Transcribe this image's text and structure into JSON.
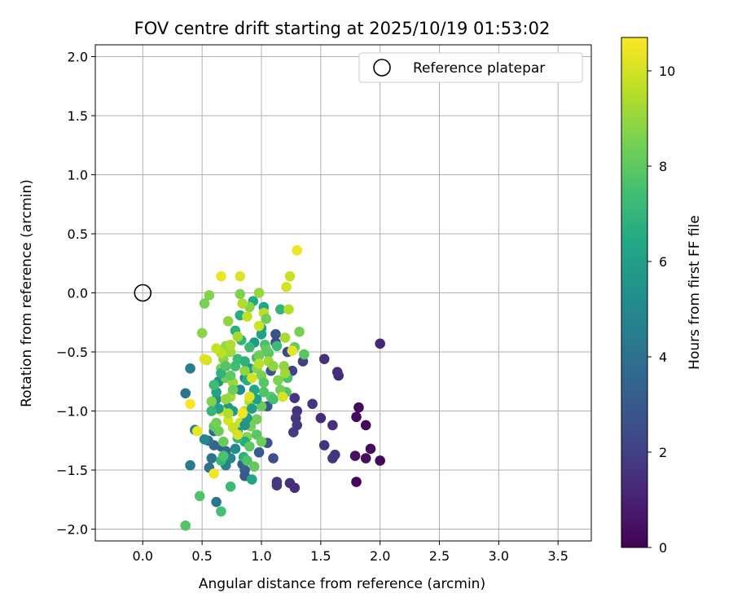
{
  "chart_data": {
    "type": "scatter",
    "title": "FOV centre drift starting at 2025/10/19 01:53:02",
    "xlabel": "Angular distance from reference (arcmin)",
    "ylabel": "Rotation from reference (arcmin)",
    "xlim": [
      -0.4,
      3.78
    ],
    "ylim": [
      -2.1,
      2.1
    ],
    "xticks": [
      "0.0",
      "0.5",
      "1.0",
      "1.5",
      "2.0",
      "2.5",
      "3.0",
      "3.5"
    ],
    "xtick_values": [
      0,
      0.5,
      1.0,
      1.5,
      2.0,
      2.5,
      3.0,
      3.5
    ],
    "yticks": [
      "2.0",
      "1.5",
      "1.0",
      "0.5",
      "0.0",
      "−0.5",
      "−1.0",
      "−1.5",
      "−2.0"
    ],
    "ytick_values": [
      2.0,
      1.5,
      1.0,
      0.5,
      0.0,
      -0.5,
      -1.0,
      -1.5,
      -2.0
    ],
    "grid": true,
    "legend": {
      "position": "top-right",
      "label": "Reference platepar",
      "marker": "open-circle"
    },
    "reference": {
      "x": 0.0,
      "y": 0.0
    },
    "colorbar": {
      "label": "Hours from first FF file",
      "range": [
        0,
        10.7
      ],
      "ticks": [
        "0",
        "2",
        "4",
        "6",
        "8",
        "10"
      ],
      "tick_values": [
        0,
        2,
        4,
        6,
        8,
        10
      ],
      "colormap": "viridis"
    },
    "points": [
      [
        1.8,
        -1.6,
        0.1
      ],
      [
        2.0,
        -1.42,
        0.2
      ],
      [
        1.92,
        -1.32,
        0.3
      ],
      [
        1.88,
        -1.4,
        0.4
      ],
      [
        1.88,
        -1.12,
        0.3
      ],
      [
        1.8,
        -1.05,
        0.2
      ],
      [
        1.82,
        -0.97,
        0.3
      ],
      [
        1.79,
        -1.38,
        0.5
      ],
      [
        2.0,
        -0.43,
        1.2
      ],
      [
        1.65,
        -0.7,
        1.3
      ],
      [
        1.64,
        -0.67,
        1.4
      ],
      [
        1.53,
        -0.56,
        1.5
      ],
      [
        1.6,
        -1.12,
        1.4
      ],
      [
        1.5,
        -1.06,
        1.3
      ],
      [
        1.53,
        -1.29,
        1.5
      ],
      [
        1.6,
        -1.4,
        1.6
      ],
      [
        1.62,
        -1.37,
        1.7
      ],
      [
        1.43,
        -0.94,
        1.6
      ],
      [
        1.3,
        -1.0,
        1.5
      ],
      [
        1.29,
        -1.06,
        1.7
      ],
      [
        1.3,
        -1.12,
        1.8
      ],
      [
        1.28,
        -0.89,
        1.6
      ],
      [
        1.27,
        -1.18,
        1.9
      ],
      [
        1.24,
        -1.61,
        1.5
      ],
      [
        1.28,
        -1.65,
        1.4
      ],
      [
        1.13,
        -1.6,
        1.7
      ],
      [
        1.13,
        -1.63,
        1.8
      ],
      [
        1.35,
        -0.58,
        2.0
      ],
      [
        1.26,
        -0.66,
        2.1
      ],
      [
        1.22,
        -0.5,
        2.2
      ],
      [
        1.12,
        -0.35,
        2.6
      ],
      [
        1.12,
        -0.42,
        2.4
      ],
      [
        1.05,
        -1.27,
        2.8
      ],
      [
        1.1,
        -1.4,
        2.6
      ],
      [
        1.08,
        -0.66,
        2.9
      ],
      [
        1.05,
        -0.96,
        3.0
      ],
      [
        0.98,
        -1.35,
        3.1
      ],
      [
        0.86,
        -1.5,
        3.2
      ],
      [
        0.86,
        -1.55,
        3.0
      ],
      [
        0.84,
        -1.45,
        3.3
      ],
      [
        0.66,
        -1.3,
        3.4
      ],
      [
        0.6,
        -1.29,
        3.5
      ],
      [
        0.7,
        -1.34,
        3.6
      ],
      [
        0.6,
        -1.17,
        3.7
      ],
      [
        0.55,
        -1.25,
        3.9
      ],
      [
        0.56,
        -1.48,
        4.0
      ],
      [
        0.58,
        -1.4,
        4.1
      ],
      [
        0.62,
        -1.77,
        4.3
      ],
      [
        0.4,
        -1.46,
        4.4
      ],
      [
        0.36,
        -0.85,
        4.2
      ],
      [
        0.4,
        -0.64,
        4.6
      ],
      [
        0.44,
        -1.16,
        4.8
      ],
      [
        0.52,
        -1.24,
        5.0
      ],
      [
        0.62,
        -0.9,
        5.2
      ],
      [
        0.64,
        -0.75,
        5.4
      ],
      [
        0.72,
        -0.97,
        5.6
      ],
      [
        0.76,
        -1.0,
        5.8
      ],
      [
        0.82,
        -0.82,
        5.0
      ],
      [
        0.86,
        -0.72,
        5.2
      ],
      [
        0.9,
        -0.64,
        5.5
      ],
      [
        0.94,
        -0.42,
        5.8
      ],
      [
        1.0,
        -0.35,
        6.0
      ],
      [
        1.0,
        -0.3,
        6.2
      ],
      [
        1.02,
        -0.12,
        6.3
      ],
      [
        0.93,
        -0.07,
        6.4
      ],
      [
        0.82,
        -0.19,
        6.6
      ],
      [
        0.78,
        -0.32,
        6.8
      ],
      [
        0.83,
        -0.4,
        7.0
      ],
      [
        0.9,
        -0.46,
        7.2
      ],
      [
        0.96,
        -0.55,
        7.4
      ],
      [
        1.03,
        -0.44,
        7.6
      ],
      [
        1.06,
        -0.51,
        7.8
      ],
      [
        1.16,
        -0.14,
        7.0
      ],
      [
        1.13,
        -0.45,
        7.3
      ],
      [
        1.22,
        -0.72,
        7.6
      ],
      [
        1.21,
        -0.84,
        7.8
      ],
      [
        1.08,
        -0.88,
        8.0
      ],
      [
        1.0,
        -0.96,
        8.2
      ],
      [
        0.96,
        -1.07,
        8.4
      ],
      [
        0.91,
        -1.13,
        8.5
      ],
      [
        0.88,
        -1.22,
        8.7
      ],
      [
        0.86,
        -1.26,
        6.5
      ],
      [
        0.85,
        -1.39,
        6.8
      ],
      [
        0.8,
        -1.23,
        7.0
      ],
      [
        0.74,
        -1.64,
        7.2
      ],
      [
        0.66,
        -1.85,
        7.5
      ],
      [
        0.48,
        -1.72,
        7.7
      ],
      [
        0.36,
        -1.97,
        7.8
      ],
      [
        0.6,
        -1.13,
        8.0
      ],
      [
        0.64,
        -1.17,
        8.2
      ],
      [
        0.7,
        -0.72,
        8.4
      ],
      [
        0.66,
        -0.64,
        8.6
      ],
      [
        0.68,
        -0.56,
        8.8
      ],
      [
        0.7,
        -0.45,
        9.0
      ],
      [
        0.74,
        -0.5,
        9.2
      ],
      [
        0.74,
        -0.44,
        9.4
      ],
      [
        0.66,
        -0.51,
        9.6
      ],
      [
        0.62,
        -0.47,
        9.8
      ],
      [
        0.54,
        -0.57,
        10.0
      ],
      [
        0.52,
        -0.56,
        10.2
      ],
      [
        0.46,
        -1.17,
        10.4
      ],
      [
        0.4,
        -0.94,
        10.6
      ],
      [
        0.6,
        -1.53,
        10.5
      ],
      [
        0.66,
        -1.0,
        10.3
      ],
      [
        0.72,
        -1.08,
        10.1
      ],
      [
        0.82,
        -1.1,
        9.9
      ],
      [
        0.86,
        -1.0,
        9.7
      ],
      [
        0.9,
        -0.92,
        9.5
      ],
      [
        0.74,
        -0.88,
        9.3
      ],
      [
        0.76,
        -0.76,
        9.1
      ],
      [
        0.86,
        -0.66,
        8.9
      ],
      [
        0.96,
        -0.64,
        8.7
      ],
      [
        1.0,
        -0.7,
        8.5
      ],
      [
        0.98,
        -0.53,
        8.3
      ],
      [
        1.04,
        -0.48,
        8.1
      ],
      [
        1.02,
        -0.76,
        7.9
      ],
      [
        1.02,
        -0.84,
        7.7
      ],
      [
        1.1,
        -0.9,
        7.5
      ],
      [
        1.18,
        -0.86,
        7.3
      ],
      [
        1.19,
        -0.62,
        8.9
      ],
      [
        1.2,
        -0.68,
        9.1
      ],
      [
        1.2,
        -0.38,
        9.3
      ],
      [
        1.23,
        -0.14,
        9.5
      ],
      [
        1.21,
        0.05,
        10.0
      ],
      [
        1.24,
        0.14,
        9.8
      ],
      [
        1.3,
        0.36,
        10.4
      ],
      [
        1.32,
        -0.33,
        8.5
      ],
      [
        1.28,
        -0.46,
        8.2
      ],
      [
        1.36,
        -0.52,
        7.9
      ],
      [
        1.26,
        -0.49,
        10.3
      ],
      [
        1.02,
        -0.17,
        9.6
      ],
      [
        0.98,
        0.0,
        9.0
      ],
      [
        0.9,
        -0.12,
        8.8
      ],
      [
        0.82,
        -0.01,
        8.6
      ],
      [
        0.82,
        0.14,
        10.2
      ],
      [
        0.66,
        0.14,
        10.4
      ],
      [
        0.56,
        -0.02,
        8.7
      ],
      [
        0.52,
        -0.09,
        8.5
      ],
      [
        0.5,
        -0.34,
        8.8
      ],
      [
        0.72,
        -0.24,
        8.9
      ],
      [
        0.8,
        -0.37,
        9.2
      ],
      [
        0.84,
        -0.09,
        9.4
      ],
      [
        0.88,
        -0.2,
        9.7
      ],
      [
        0.98,
        -0.28,
        9.9
      ],
      [
        1.04,
        -0.22,
        8.3
      ],
      [
        0.78,
        -0.62,
        7.4
      ],
      [
        0.8,
        -0.56,
        7.2
      ],
      [
        0.86,
        -0.58,
        6.8
      ],
      [
        0.88,
        -0.74,
        6.6
      ],
      [
        0.94,
        -0.82,
        6.4
      ],
      [
        0.96,
        -0.9,
        6.1
      ],
      [
        0.92,
        -0.98,
        5.9
      ],
      [
        0.88,
        -1.06,
        5.7
      ],
      [
        0.86,
        -1.12,
        5.5
      ],
      [
        0.8,
        -1.18,
        5.3
      ],
      [
        0.78,
        -1.32,
        5.1
      ],
      [
        0.74,
        -1.4,
        4.9
      ],
      [
        0.7,
        -1.46,
        4.7
      ],
      [
        0.66,
        -1.42,
        7.1
      ],
      [
        0.68,
        -1.38,
        7.6
      ],
      [
        0.68,
        -1.26,
        8.2
      ],
      [
        0.62,
        -1.1,
        8.4
      ],
      [
        0.58,
        -0.92,
        8.6
      ],
      [
        0.62,
        -0.84,
        6.2
      ],
      [
        0.64,
        -0.98,
        6.0
      ],
      [
        0.66,
        -0.68,
        6.9
      ],
      [
        0.7,
        -0.62,
        7.8
      ],
      [
        0.74,
        -0.7,
        8.0
      ],
      [
        0.76,
        -0.82,
        8.3
      ],
      [
        0.7,
        -0.9,
        9.0
      ],
      [
        0.72,
        -1.02,
        9.4
      ],
      [
        0.76,
        -1.14,
        9.8
      ],
      [
        0.8,
        -1.2,
        10.0
      ],
      [
        0.84,
        -1.02,
        10.5
      ],
      [
        0.9,
        -0.88,
        10.2
      ],
      [
        0.92,
        -0.72,
        10.0
      ],
      [
        0.98,
        -0.6,
        9.6
      ],
      [
        1.06,
        -0.58,
        9.2
      ],
      [
        1.1,
        -0.62,
        8.9
      ],
      [
        1.14,
        -0.74,
        8.6
      ],
      [
        1.16,
        -0.82,
        8.4
      ],
      [
        1.18,
        -0.88,
        10.1
      ],
      [
        0.96,
        -1.2,
        7.9
      ],
      [
        1.0,
        -1.26,
        8.3
      ],
      [
        0.9,
        -1.3,
        8.0
      ],
      [
        0.88,
        -1.42,
        7.7
      ],
      [
        0.94,
        -1.47,
        8.1
      ],
      [
        0.92,
        -1.58,
        6.3
      ],
      [
        0.58,
        -1.0,
        7.0
      ],
      [
        0.6,
        -0.78,
        7.3
      ]
    ]
  }
}
